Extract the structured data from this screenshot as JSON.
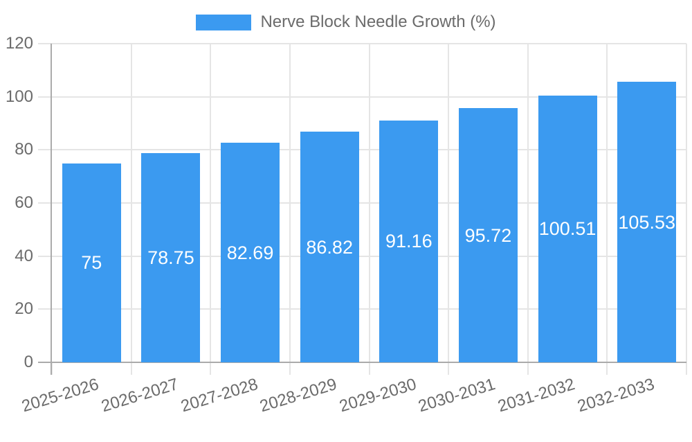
{
  "legend": {
    "label": "Nerve Block Needle Growth (%)"
  },
  "chart_data": {
    "type": "bar",
    "title": "",
    "series_name": "Nerve Block Needle Growth (%)",
    "categories": [
      "2025-2026",
      "2026-2027",
      "2027-2028",
      "2028-2029",
      "2029-2030",
      "2030-2031",
      "2031-2032",
      "2032-2033"
    ],
    "values": [
      75,
      78.75,
      82.69,
      86.82,
      91.16,
      95.72,
      100.51,
      105.53
    ],
    "value_labels": [
      "75",
      "78.75",
      "82.69",
      "86.82",
      "91.16",
      "95.72",
      "100.51",
      "105.53"
    ],
    "xlabel": "",
    "ylabel": "",
    "ylim": [
      0,
      120
    ],
    "yticks": [
      0,
      20,
      40,
      60,
      80,
      100,
      120
    ],
    "grid": true,
    "legend_position": "top-center",
    "x_tick_rotation_deg": -17
  },
  "colors": {
    "bar": "#3b9af0",
    "value_label": "#ffffff",
    "grid_line": "#e5e5e5",
    "tick_mark": "#e5e5e5",
    "axis_line": "#ababab",
    "tick_label": "#6b6b6b",
    "background": "#ffffff"
  }
}
